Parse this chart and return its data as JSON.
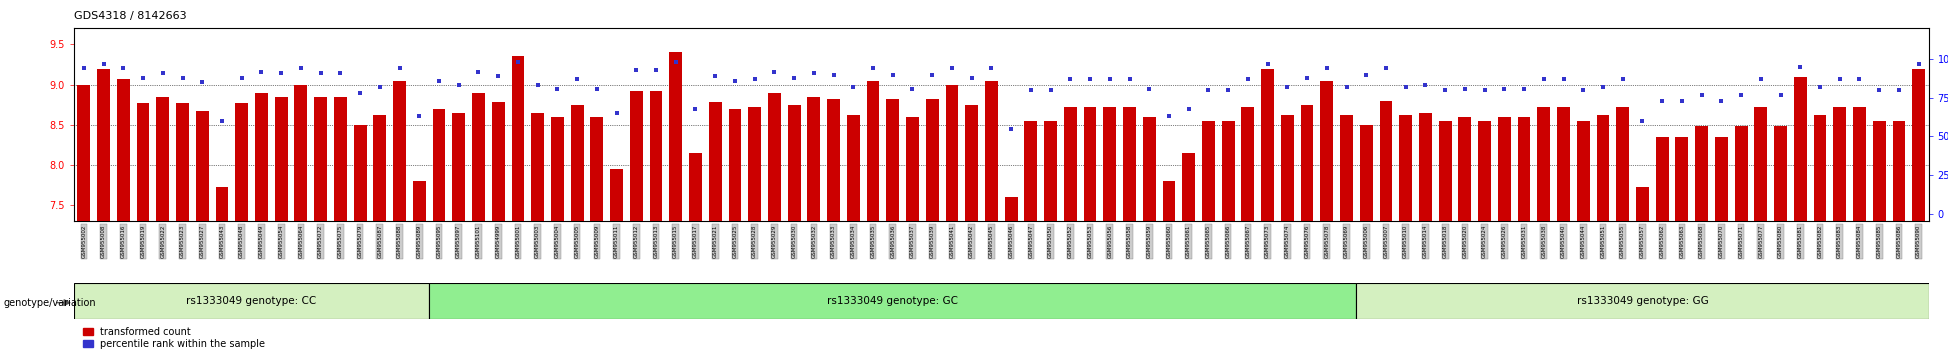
{
  "title": "GDS4318 / 8142663",
  "ylim_left": [
    7.3,
    9.7
  ],
  "ylim_right": [
    -5,
    120
  ],
  "yticks_left": [
    7.5,
    8.0,
    8.5,
    9.0,
    9.5
  ],
  "yticks_right": [
    0,
    25,
    50,
    75,
    100
  ],
  "bar_color": "#cc0000",
  "dot_color": "#3333cc",
  "samples_cc": [
    "GSM955002",
    "GSM955008",
    "GSM955016",
    "GSM955019",
    "GSM955022",
    "GSM955023",
    "GSM955027",
    "GSM955043",
    "GSM955048",
    "GSM955049",
    "GSM955054",
    "GSM955064",
    "GSM955072",
    "GSM955075",
    "GSM955079",
    "GSM955087",
    "GSM955088",
    "GSM955089"
  ],
  "samples_gc": [
    "GSM955095",
    "GSM955097",
    "GSM955101",
    "GSM954999",
    "GSM955001",
    "GSM955003",
    "GSM955004",
    "GSM955005",
    "GSM955009",
    "GSM955011",
    "GSM955012",
    "GSM955013",
    "GSM955015",
    "GSM955017",
    "GSM955021",
    "GSM955025",
    "GSM955028",
    "GSM955029",
    "GSM955030",
    "GSM955032",
    "GSM955033",
    "GSM955034",
    "GSM955035",
    "GSM955036",
    "GSM955037",
    "GSM955039",
    "GSM955041",
    "GSM955042",
    "GSM955045",
    "GSM955046",
    "GSM955047",
    "GSM955050",
    "GSM955052",
    "GSM955053",
    "GSM955056",
    "GSM955058",
    "GSM955059",
    "GSM955060",
    "GSM955061",
    "GSM955065",
    "GSM955066",
    "GSM955067",
    "GSM955073",
    "GSM955074",
    "GSM955076",
    "GSM955078",
    "GSM955069"
  ],
  "samples_gg": [
    "GSM955006",
    "GSM955007",
    "GSM955010",
    "GSM955014",
    "GSM955018",
    "GSM955020",
    "GSM955024",
    "GSM955026",
    "GSM955031",
    "GSM955038",
    "GSM955040",
    "GSM955044",
    "GSM955051",
    "GSM955055",
    "GSM955057",
    "GSM955062",
    "GSM955063",
    "GSM955068",
    "GSM955070",
    "GSM955071",
    "GSM955077",
    "GSM955080",
    "GSM955081",
    "GSM955082",
    "GSM955083",
    "GSM955084",
    "GSM955085",
    "GSM955086",
    "GSM955090"
  ],
  "bar_values_cc": [
    9.0,
    9.2,
    9.07,
    8.77,
    8.85,
    8.77,
    8.67,
    7.72,
    8.77,
    8.9,
    8.85,
    9.0,
    8.85,
    8.85,
    8.5,
    8.62,
    9.05,
    7.8
  ],
  "bar_values_gc": [
    8.7,
    8.65,
    8.9,
    8.78,
    9.35,
    8.65,
    8.6,
    8.75,
    8.6,
    7.95,
    8.92,
    8.92,
    9.4,
    8.15,
    8.78,
    8.7,
    8.72,
    8.9,
    8.75,
    8.85,
    8.82,
    8.62,
    9.05,
    8.82,
    8.6,
    8.82,
    9.0,
    8.75,
    9.05,
    7.6,
    8.55,
    8.55,
    8.72,
    8.72,
    8.72,
    8.72,
    8.6,
    7.8,
    8.15,
    8.55,
    8.55,
    8.72,
    9.2,
    8.62,
    8.75,
    9.05,
    8.62
  ],
  "bar_values_gg": [
    8.5,
    8.8,
    8.62,
    8.65,
    8.55,
    8.6,
    8.55,
    8.6,
    8.6,
    8.72,
    8.72,
    8.55,
    8.62,
    8.72,
    7.72,
    8.35,
    8.35,
    8.48,
    8.35,
    8.48,
    8.72,
    8.48,
    9.1,
    8.62,
    8.72,
    8.72,
    8.55,
    8.55,
    9.2
  ],
  "dot_values_cc": [
    94,
    97,
    94,
    88,
    91,
    88,
    85,
    60,
    88,
    92,
    91,
    94,
    91,
    91,
    78,
    82,
    94,
    63
  ],
  "dot_values_gc": [
    86,
    83,
    92,
    89,
    98,
    83,
    81,
    87,
    81,
    65,
    93,
    93,
    98,
    68,
    89,
    86,
    87,
    92,
    88,
    91,
    90,
    82,
    94,
    90,
    81,
    90,
    94,
    88,
    94,
    55,
    80,
    80,
    87,
    87,
    87,
    87,
    81,
    63,
    68,
    80,
    80,
    87,
    97,
    82,
    88,
    94,
    82
  ],
  "dot_values_gg": [
    90,
    94,
    82,
    83,
    80,
    81,
    80,
    81,
    81,
    87,
    87,
    80,
    82,
    87,
    60,
    73,
    73,
    77,
    73,
    77,
    87,
    77,
    95,
    82,
    87,
    87,
    80,
    80,
    97
  ],
  "genotype_groups": [
    {
      "label": "rs1333049 genotype: CC",
      "count": 18,
      "color": "#d4f0c0"
    },
    {
      "label": "rs1333049 genotype: GC",
      "count": 47,
      "color": "#90ee90"
    },
    {
      "label": "rs1333049 genotype: GG",
      "count": 29,
      "color": "#d4f0c0"
    }
  ]
}
